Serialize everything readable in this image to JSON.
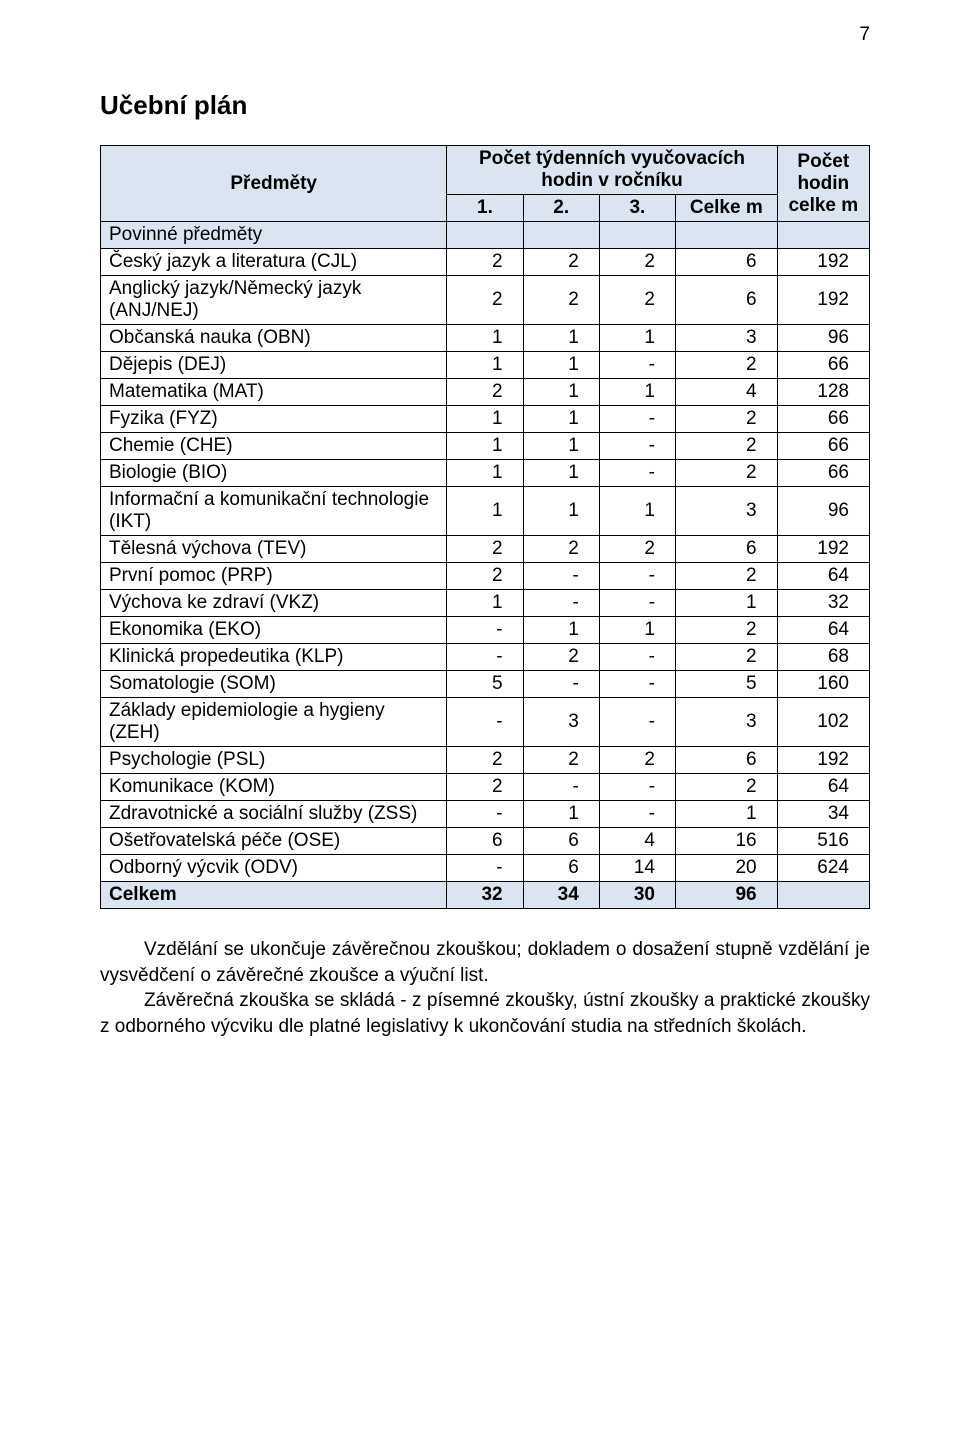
{
  "page_number": "7",
  "title": "Učební plán",
  "header": {
    "subjects": "Předměty",
    "weekly_hours": "Počet týdenních vyučovacích hodin v ročníku",
    "total_hours": "Počet hodin celke m",
    "y1": "1.",
    "y2": "2.",
    "y3": "3.",
    "sum": "Celke m"
  },
  "section_label": "Povinné předměty",
  "colors": {
    "header_bg": "#dbe5f1",
    "border": "#000000",
    "text": "#000000",
    "page_bg": "#ffffff"
  },
  "rows": [
    {
      "name": "Český jazyk a literatura (CJL)",
      "v": [
        "2",
        "2",
        "2",
        "6",
        "192"
      ]
    },
    {
      "name": "Anglický jazyk/Německý jazyk (ANJ/NEJ)",
      "v": [
        "2",
        "2",
        "2",
        "6",
        "192"
      ]
    },
    {
      "name": "Občanská nauka (OBN)",
      "v": [
        "1",
        "1",
        "1",
        "3",
        "96"
      ]
    },
    {
      "name": "Dějepis (DEJ)",
      "v": [
        "1",
        "1",
        "-",
        "2",
        "66"
      ]
    },
    {
      "name": "Matematika (MAT)",
      "v": [
        "2",
        "1",
        "1",
        "4",
        "128"
      ]
    },
    {
      "name": "Fyzika (FYZ)",
      "v": [
        "1",
        "1",
        "-",
        "2",
        "66"
      ]
    },
    {
      "name": "Chemie (CHE)",
      "v": [
        "1",
        "1",
        "-",
        "2",
        "66"
      ]
    },
    {
      "name": "Biologie (BIO)",
      "v": [
        "1",
        "1",
        "-",
        "2",
        "66"
      ]
    },
    {
      "name": "Informační a komunikační technologie (IKT)",
      "v": [
        "1",
        "1",
        "1",
        "3",
        "96"
      ]
    },
    {
      "name": "Tělesná výchova (TEV)",
      "v": [
        "2",
        "2",
        "2",
        "6",
        "192"
      ]
    },
    {
      "name": "První pomoc (PRP)",
      "v": [
        "2",
        "-",
        "-",
        "2",
        "64"
      ]
    },
    {
      "name": "Výchova ke zdraví (VKZ)",
      "v": [
        "1",
        "-",
        "-",
        "1",
        "32"
      ]
    },
    {
      "name": "Ekonomika (EKO)",
      "v": [
        "-",
        "1",
        "1",
        "2",
        "64"
      ]
    },
    {
      "name": "Klinická propedeutika (KLP)",
      "v": [
        "-",
        "2",
        "-",
        "2",
        "68"
      ]
    },
    {
      "name": "Somatologie (SOM)",
      "v": [
        "5",
        "-",
        "-",
        "5",
        "160"
      ]
    },
    {
      "name": "Základy epidemiologie a hygieny (ZEH)",
      "v": [
        "-",
        "3",
        "-",
        "3",
        "102"
      ]
    },
    {
      "name": "Psychologie (PSL)",
      "v": [
        "2",
        "2",
        "2",
        "6",
        "192"
      ]
    },
    {
      "name": "Komunikace (KOM)",
      "v": [
        "2",
        "-",
        "-",
        "2",
        "64"
      ]
    },
    {
      "name": "Zdravotnické a sociální služby (ZSS)",
      "v": [
        "-",
        "1",
        "-",
        "1",
        "34"
      ]
    },
    {
      "name": "Ošetřovatelská péče (OSE)",
      "v": [
        "6",
        "6",
        "4",
        "16",
        "516"
      ]
    },
    {
      "name": "Odborný výcvik (ODV)",
      "v": [
        "-",
        "6",
        "14",
        "20",
        "624"
      ]
    }
  ],
  "sum_row": {
    "name": "Celkem",
    "v": [
      "32",
      "34",
      "30",
      "96",
      ""
    ]
  },
  "paragraphs": [
    "Vzdělání se ukončuje závěrečnou zkouškou; dokladem o dosažení stupně vzdělání je vysvědčení o závěrečné zkoušce a výuční list.",
    "Závěrečná zkouška se skládá - z písemné zkoušky, ústní zkoušky a praktické zkoušky z odborného výcviku dle platné legislativy k ukončování studia na středních školách."
  ]
}
